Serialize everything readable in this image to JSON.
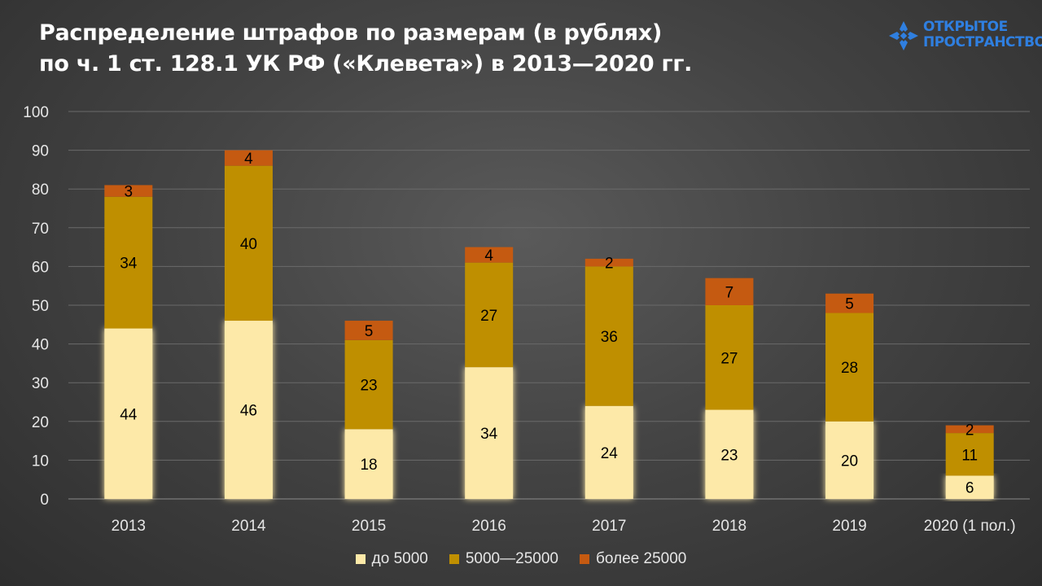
{
  "header": {
    "title_line1": "Распределение штрафов по размерам (в рублях)",
    "title_line2": "по ч. 1 ст. 128.1 УК РФ («Клевета») в 2013—2020 гг."
  },
  "logo": {
    "line1": "Открытое",
    "line2": "Пространство",
    "icon": "cross-star-icon",
    "color": "#2f7fe0"
  },
  "colors": {
    "series1": "#fde9a8",
    "series2": "#bf8f00",
    "series3": "#c55a11",
    "axis_text": "#e6e6e6",
    "grid": "#6a6a6a"
  },
  "chart_data": {
    "type": "bar",
    "stacked": true,
    "title": "Распределение штрафов по размерам (в рублях) по ч. 1 ст. 128.1 УК РФ («Клевета») в 2013—2020 гг.",
    "categories": [
      "2013",
      "2014",
      "2015",
      "2016",
      "2017",
      "2018",
      "2019",
      "2020 (1 пол.)"
    ],
    "series": [
      {
        "name": "до 5000",
        "values": [
          44,
          46,
          18,
          34,
          24,
          23,
          20,
          6
        ]
      },
      {
        "name": "5000—25000",
        "values": [
          34,
          40,
          23,
          27,
          36,
          27,
          28,
          11
        ]
      },
      {
        "name": "более 25000",
        "values": [
          3,
          4,
          5,
          4,
          2,
          7,
          5,
          2
        ]
      }
    ],
    "yticks": [
      0,
      10,
      20,
      30,
      40,
      50,
      60,
      70,
      80,
      90,
      100
    ],
    "ylim": [
      0,
      100
    ],
    "grid": true,
    "legend_position": "bottom"
  }
}
